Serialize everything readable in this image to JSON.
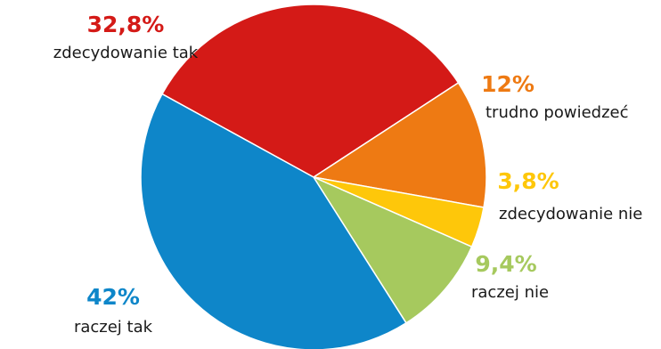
{
  "chart_data": {
    "type": "pie",
    "title": "",
    "slices": [
      {
        "label": "zdecydowanie tak",
        "value": 32.8,
        "value_label": "32,8%",
        "color": "#d41a17"
      },
      {
        "label": "trudno powiedzeć",
        "value": 12.0,
        "value_label": "12%",
        "color": "#ee7a13"
      },
      {
        "label": "zdecydowanie nie",
        "value": 3.8,
        "value_label": "3,8%",
        "color": "#fec70a"
      },
      {
        "label": "raczej nie",
        "value": 9.4,
        "value_label": "9,4%",
        "color": "#a6c95e"
      },
      {
        "label": "raczej tak",
        "value": 42.0,
        "value_label": "42%",
        "color": "#0e86c9"
      }
    ]
  }
}
